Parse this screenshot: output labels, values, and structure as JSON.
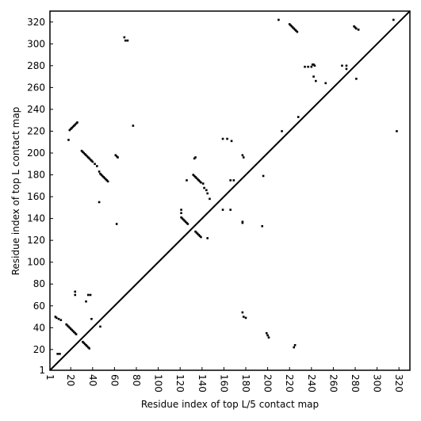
{
  "chart_data": {
    "type": "scatter",
    "x_label": "Residue index of top L/5 contact map",
    "y_label": "Residue index of top L contact map",
    "xlim": [
      1,
      330
    ],
    "ylim": [
      1,
      330
    ],
    "xticks": [
      1,
      20,
      40,
      60,
      80,
      100,
      120,
      140,
      160,
      180,
      200,
      220,
      240,
      260,
      280,
      300,
      320
    ],
    "yticks": [
      1,
      20,
      40,
      60,
      80,
      100,
      120,
      140,
      160,
      180,
      200,
      220,
      240,
      260,
      280,
      300,
      320
    ],
    "diagonal": true,
    "series": [
      {
        "color": "#000000",
        "x": [
          19,
          20,
          21,
          22,
          23,
          24,
          25,
          26,
          18,
          30,
          31,
          32,
          33,
          34,
          35,
          36,
          37,
          38,
          39,
          40,
          42,
          44,
          46,
          47,
          48,
          49,
          50,
          51,
          52,
          53,
          54,
          61,
          62,
          63,
          69,
          70,
          72,
          77,
          46,
          62,
          121,
          121,
          121,
          122,
          123,
          124,
          125,
          126,
          127,
          132,
          133,
          134,
          135,
          136,
          137,
          138,
          139,
          133,
          134,
          134,
          135,
          136,
          137,
          138,
          139,
          145,
          142,
          144,
          145,
          147,
          141,
          126,
          159,
          163,
          167,
          159,
          166,
          166,
          169,
          177,
          178,
          177,
          177,
          195,
          196,
          210,
          213,
          220,
          221,
          222,
          223,
          224,
          225,
          226,
          227,
          228,
          234,
          237,
          240,
          241,
          242,
          243,
          242,
          244,
          268,
          272,
          272,
          253,
          279,
          280,
          281,
          283,
          281,
          315
        ],
        "y": [
          221,
          222,
          223,
          224,
          225,
          226,
          227,
          228,
          212,
          202,
          201,
          200,
          199,
          198,
          197,
          196,
          195,
          194,
          193,
          192,
          190,
          188,
          183,
          181,
          180,
          179,
          178,
          177,
          176,
          175,
          174,
          198,
          197,
          196,
          306,
          303,
          303,
          225,
          155,
          135,
          148,
          145,
          141,
          140,
          139,
          138,
          137,
          136,
          135,
          180,
          179,
          178,
          177,
          176,
          175,
          174,
          173,
          195,
          196,
          128,
          127,
          126,
          125,
          124,
          123,
          122,
          168,
          166,
          163,
          158,
          172,
          175,
          213,
          213,
          211,
          148,
          148,
          175,
          175,
          198,
          196,
          137,
          136,
          133,
          179,
          322,
          220,
          318,
          317,
          316,
          315,
          314,
          313,
          312,
          311,
          233,
          279,
          279,
          279,
          281,
          281,
          280,
          270,
          266,
          280,
          280,
          277,
          264,
          316,
          315,
          314,
          313,
          268,
          322
        ]
      },
      {
        "color": "#000000",
        "x": [
          6,
          7,
          9,
          11,
          8,
          10,
          16,
          17,
          18,
          19,
          20,
          21,
          22,
          23,
          24,
          25,
          24,
          24,
          31,
          32,
          33,
          34,
          35,
          36,
          37,
          34,
          36,
          38,
          39,
          47,
          318,
          177,
          178,
          180,
          199,
          200,
          201,
          225,
          224
        ],
        "y": [
          50,
          49,
          48,
          47,
          16,
          16,
          43,
          42,
          41,
          40,
          39,
          38,
          37,
          36,
          35,
          34,
          70,
          73,
          27,
          26,
          25,
          24,
          23,
          22,
          21,
          64,
          70,
          70,
          48,
          41,
          220,
          54,
          50,
          49,
          35,
          33,
          31,
          24,
          22
        ]
      }
    ]
  }
}
